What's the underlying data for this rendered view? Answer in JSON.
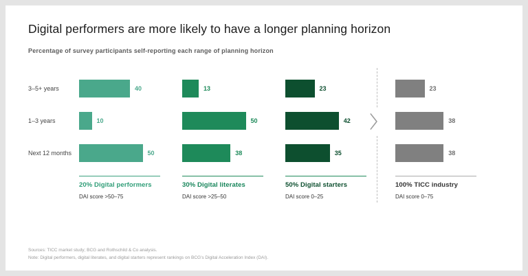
{
  "title": "Digital performers are more likely to have a longer planning horizon",
  "subtitle": "Percentage of survey participants self-reporting each range of planning horizon",
  "chart_data": {
    "type": "bar",
    "orientation": "horizontal",
    "categories": [
      "3–5+ years",
      "1–3 years",
      "Next 12 months"
    ],
    "xlim": [
      0,
      54
    ],
    "legend_position": "below-groups",
    "grid": false,
    "series": [
      {
        "name": "20% Digital performers",
        "dai_label": "DAI score >50–75",
        "values": [
          40,
          10,
          50
        ],
        "bar_color": "#4aa88b",
        "value_color": "#4aa88b",
        "label_color": "#2f9d77",
        "line_color": "#3aa07d"
      },
      {
        "name": "30% Digital literates",
        "dai_label": "DAI score >25–50",
        "values": [
          13,
          50,
          38
        ],
        "bar_color": "#1e8a5a",
        "value_color": "#1e8a5a",
        "label_color": "#17855a",
        "line_color": "#1e8a5a"
      },
      {
        "name": "50% Digital starters",
        "dai_label": "DAI score 0–25",
        "values": [
          23,
          42,
          35
        ],
        "bar_color": "#0d4f2f",
        "value_color": "#0d4f2f",
        "label_color": "#0d4f2f",
        "line_color": "#1e8a5a"
      },
      {
        "name": "100% TICC industry",
        "dai_label": "DAI score 0–75",
        "values": [
          23,
          38,
          38
        ],
        "bar_color": "#808080",
        "value_color": "#6e6e6e",
        "label_color": "#333333",
        "line_color": "#ababab"
      }
    ]
  },
  "icons": {
    "chevron": "chevron-right"
  },
  "footer": {
    "sources": "Sources: TICC market study; BCG and Rothschild & Co analysis.",
    "note": "Note: Digital performers, digital literates, and digital starters represent rankings on BCG's Digital Acceleration Index (DAI)."
  }
}
